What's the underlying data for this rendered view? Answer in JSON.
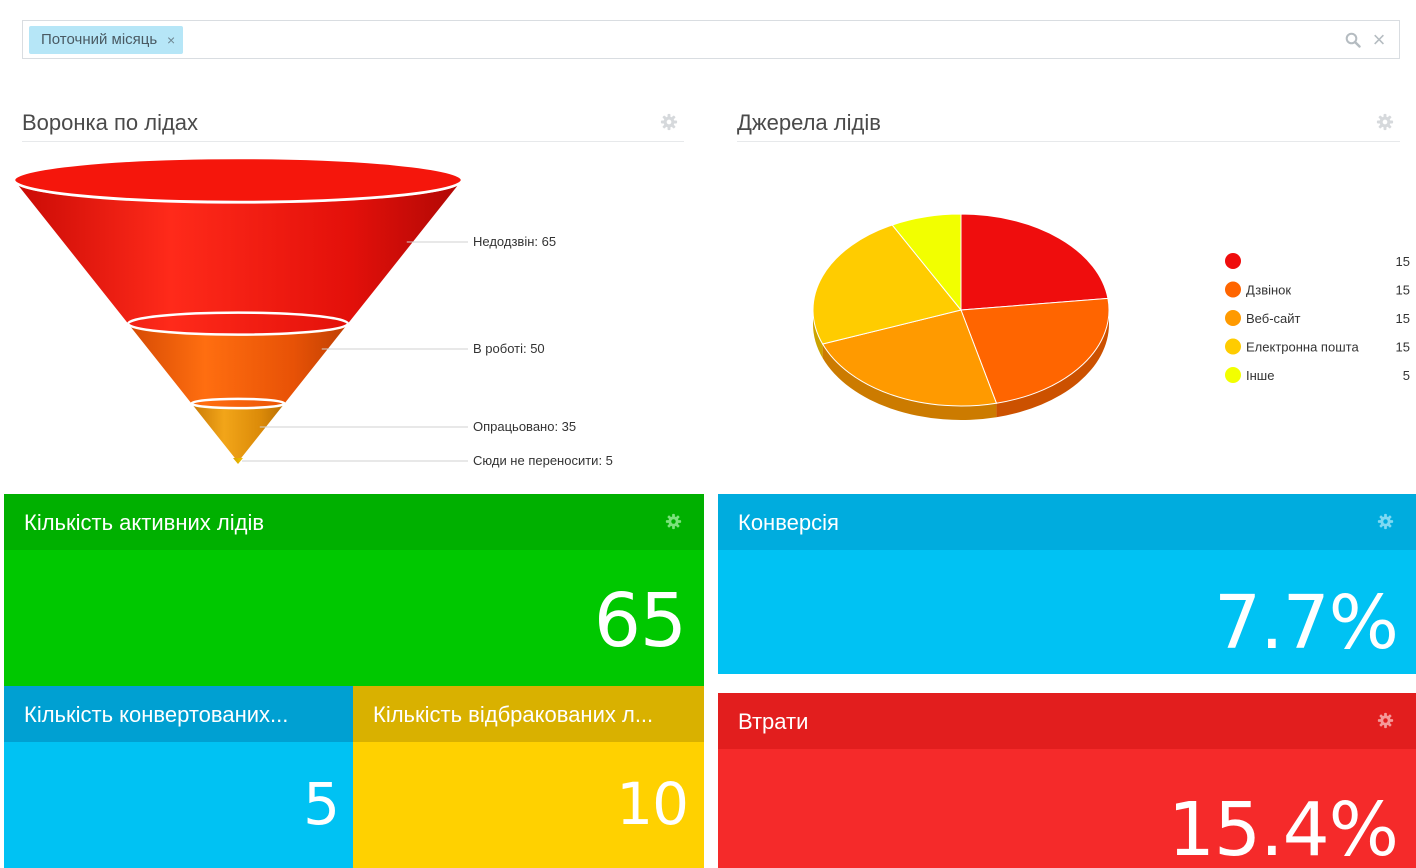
{
  "filter": {
    "tag_label": "Поточний місяць",
    "tag_remove_icon": "×",
    "search_icon": "search-icon",
    "clear_icon": "×"
  },
  "funnel_widget": {
    "title": "Воронка по лідах",
    "settings_icon": "gear-icon"
  },
  "sources_widget": {
    "title": "Джерела лідів",
    "settings_icon": "gear-icon"
  },
  "chart_data": [
    {
      "type": "funnel",
      "title": "Воронка по лідах",
      "stages": [
        {
          "label": "Недодзвін: 65",
          "value": 65,
          "color": "#e8120a"
        },
        {
          "label": "В роботі: 50",
          "value": 50,
          "color": "#ee5a06"
        },
        {
          "label": "Опрацьовано: 35",
          "value": 35,
          "color": "#e99a10"
        },
        {
          "label": "Сюди не переносити: 5",
          "value": 5,
          "color": "#e8b000"
        }
      ]
    },
    {
      "type": "pie",
      "title": "Джерела лідів",
      "legend_position": "right",
      "slices": [
        {
          "name": "",
          "value": 15,
          "color": "#ef0d0d"
        },
        {
          "name": "Дзвінок",
          "value": 15,
          "color": "#ff6500"
        },
        {
          "name": "Веб-сайт",
          "value": 15,
          "color": "#ff9a00"
        },
        {
          "name": "Електронна пошта",
          "value": 15,
          "color": "#ffcc00"
        },
        {
          "name": "Інше",
          "value": 5,
          "color": "#f2ff00"
        }
      ]
    }
  ],
  "tiles": {
    "active": {
      "title": "Кількість активних лідів",
      "value": "65",
      "color_head": "#00b000",
      "color_body": "#00c800"
    },
    "conversion": {
      "title": "Конверсія",
      "value": "7.7%",
      "color_head": "#00acde",
      "color_body": "#00c2f3"
    },
    "converted": {
      "title": "Кількість конвертованих...",
      "value": "5",
      "color_head": "#00a0d2",
      "color_body": "#00c2f3"
    },
    "rejected": {
      "title": "Кількість відбракованих л...",
      "value": "10",
      "color_head": "#d9b100",
      "color_body": "#ffd100"
    },
    "losses": {
      "title": "Втрати",
      "value": "15.4%",
      "color_head": "#e21e1e",
      "color_body": "#f52a2a"
    }
  }
}
